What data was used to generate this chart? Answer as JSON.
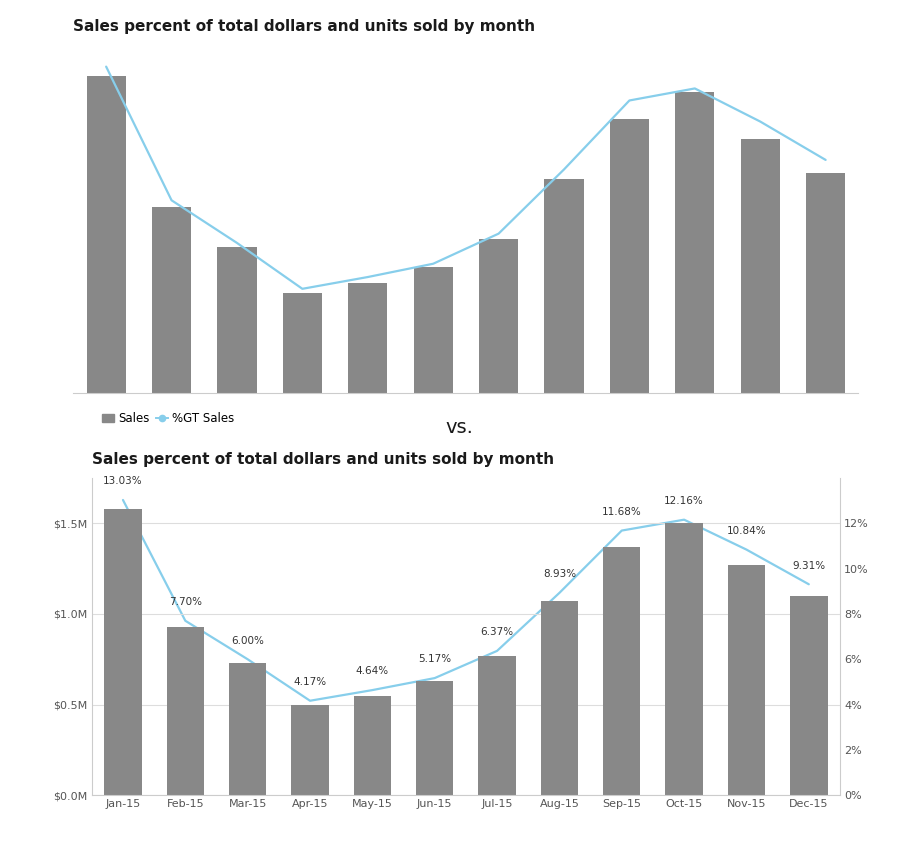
{
  "title": "Sales percent of total dollars and units sold by month",
  "months": [
    "Jan-15",
    "Feb-15",
    "Mar-15",
    "Apr-15",
    "May-15",
    "Jun-15",
    "Jul-15",
    "Aug-15",
    "Sep-15",
    "Oct-15",
    "Nov-15",
    "Dec-15"
  ],
  "sales_values": [
    1.58,
    0.93,
    0.73,
    0.5,
    0.55,
    0.63,
    0.77,
    1.07,
    1.37,
    1.5,
    1.27,
    1.1
  ],
  "pct_values": [
    13.03,
    7.7,
    6.0,
    4.17,
    4.64,
    5.17,
    6.37,
    8.93,
    11.68,
    12.16,
    10.84,
    9.31
  ],
  "bar_color": "#888888",
  "line_color": "#87CEEB",
  "background_color": "#ffffff",
  "legend_sales_color": "#888888",
  "legend_line_color": "#87CEEB",
  "vs_text": "vs.",
  "yticks_left": [
    0.0,
    0.5,
    1.0,
    1.5
  ],
  "yticks_left_labels": [
    "$0.0M",
    "$0.5M",
    "$1.0M",
    "$1.5M"
  ],
  "yticks_right": [
    0,
    2,
    4,
    6,
    8,
    10,
    12
  ],
  "yticks_right_labels": [
    "0%",
    "2%",
    "4%",
    "6%",
    "8%",
    "10%",
    "12%"
  ],
  "grid_color": "#dddddd",
  "title_fontsize": 11,
  "legend_fontsize": 8.5,
  "tick_fontsize": 8,
  "annotation_fontsize": 7.5,
  "vs_fontsize": 14,
  "bar_width": 0.6
}
